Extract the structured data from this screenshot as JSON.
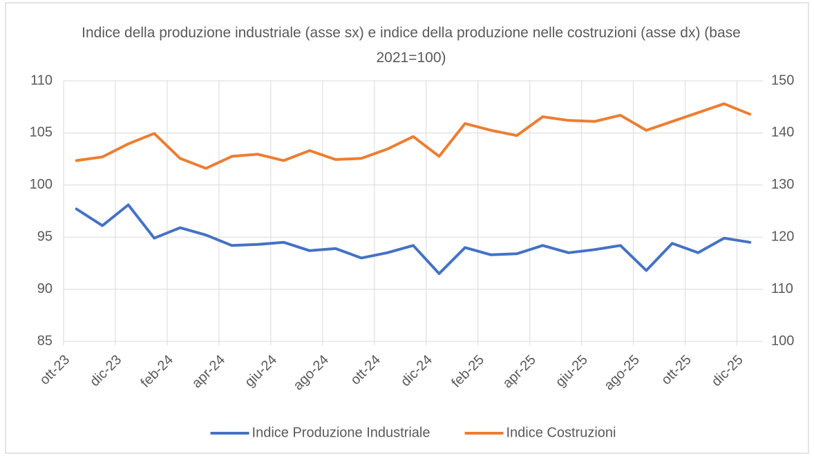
{
  "chart_data": {
    "type": "line",
    "title": "Indice della produzione industriale (asse sx) e indice della  produzione nelle costruzioni (asse dx) (base 2021=100)",
    "categories": [
      "ott-23",
      null,
      "dic-23",
      null,
      "feb-24",
      null,
      "apr-24",
      null,
      "giu-24",
      null,
      "ago-24",
      null,
      "ott-24",
      null,
      "dic-24",
      null,
      "feb-25",
      null,
      "apr-25",
      null,
      "giu-25",
      null,
      "ago-25",
      null,
      "ott-25",
      null,
      "dic-25"
    ],
    "series": [
      {
        "name": "Indice Produzione Industriale",
        "color": "#4472c4",
        "axis": "y",
        "values": [
          97.7,
          96.1,
          98.1,
          94.9,
          95.9,
          95.2,
          94.2,
          94.3,
          94.5,
          93.7,
          93.9,
          93.0,
          93.5,
          94.2,
          91.5,
          94.0,
          93.3,
          93.4,
          94.2,
          93.5,
          93.8,
          94.2,
          91.8,
          94.4,
          93.5,
          94.9,
          94.5
        ]
      },
      {
        "name": "Indice Costruzioni",
        "color": "#ed7d31",
        "axis": "y2",
        "values": [
          134.7,
          135.4,
          137.9,
          139.9,
          135.1,
          133.2,
          135.5,
          135.9,
          134.7,
          136.6,
          134.9,
          135.1,
          136.9,
          139.3,
          135.5,
          141.8,
          140.5,
          139.5,
          143.1,
          142.4,
          142.2,
          143.4,
          140.5,
          142.2,
          143.9,
          145.6,
          143.6
        ]
      }
    ],
    "ylim": [
      85,
      110
    ],
    "yticks": [
      85,
      90,
      95,
      100,
      105,
      110
    ],
    "y2lim": [
      100,
      150
    ],
    "y2ticks": [
      100,
      110,
      120,
      130,
      140,
      150
    ],
    "grid": true,
    "legend": "bottom"
  }
}
